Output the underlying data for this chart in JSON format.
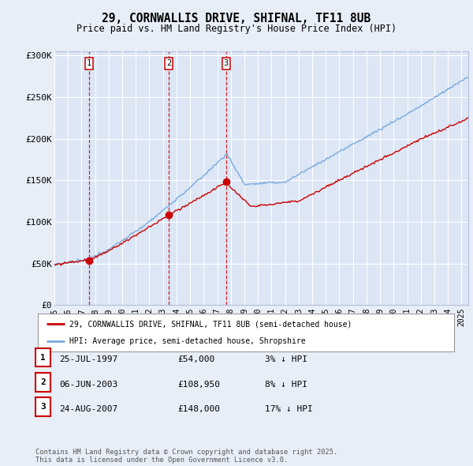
{
  "title_line1": "29, CORNWALLIS DRIVE, SHIFNAL, TF11 8UB",
  "title_line2": "Price paid vs. HM Land Registry's House Price Index (HPI)",
  "background_color": "#e8eef8",
  "plot_bg_color": "#dce6f5",
  "grid_color": "#ffffff",
  "red_line_color": "#cc0000",
  "blue_line_color": "#7aaadd",
  "sale_prices": [
    54000,
    108950,
    148000
  ],
  "sale_year_floats": [
    1997.57,
    2003.44,
    2007.65
  ],
  "sale_labels": [
    "1",
    "2",
    "3"
  ],
  "yticks": [
    0,
    50000,
    100000,
    150000,
    200000,
    250000,
    300000
  ],
  "ytick_labels": [
    "£0",
    "£50K",
    "£100K",
    "£150K",
    "£200K",
    "£250K",
    "£300K"
  ],
  "legend_entries": [
    "29, CORNWALLIS DRIVE, SHIFNAL, TF11 8UB (semi-detached house)",
    "HPI: Average price, semi-detached house, Shropshire"
  ],
  "table_rows": [
    [
      "1",
      "25-JUL-1997",
      "£54,000",
      "3% ↓ HPI"
    ],
    [
      "2",
      "06-JUN-2003",
      "£108,950",
      "8% ↓ HPI"
    ],
    [
      "3",
      "24-AUG-2007",
      "£148,000",
      "17% ↓ HPI"
    ]
  ],
  "footer": "Contains HM Land Registry data © Crown copyright and database right 2025.\nThis data is licensed under the Open Government Licence v3.0."
}
